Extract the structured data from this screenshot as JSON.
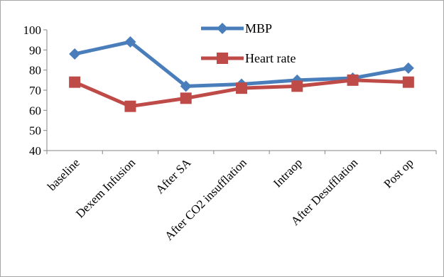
{
  "chart_data": {
    "type": "line",
    "title": "",
    "xlabel": "",
    "ylabel": "",
    "categories": [
      "baseline",
      "Dexem Infusion",
      "After SA",
      "After CO2  insufflation",
      "Intraop",
      "After Desufflation",
      "Post op"
    ],
    "ylim": [
      40,
      100
    ],
    "yticks": [
      40,
      50,
      60,
      70,
      80,
      90,
      100
    ],
    "grid": false,
    "legend_position": "top-center",
    "series": [
      {
        "name": "MBP",
        "values": [
          88,
          94,
          72,
          73,
          75,
          76,
          81
        ],
        "color": "#4a7ebb",
        "marker": "diamond"
      },
      {
        "name": "Heart rate",
        "values": [
          74,
          62,
          66,
          71,
          72,
          75,
          74
        ],
        "color": "#be4b48",
        "marker": "square"
      }
    ]
  }
}
